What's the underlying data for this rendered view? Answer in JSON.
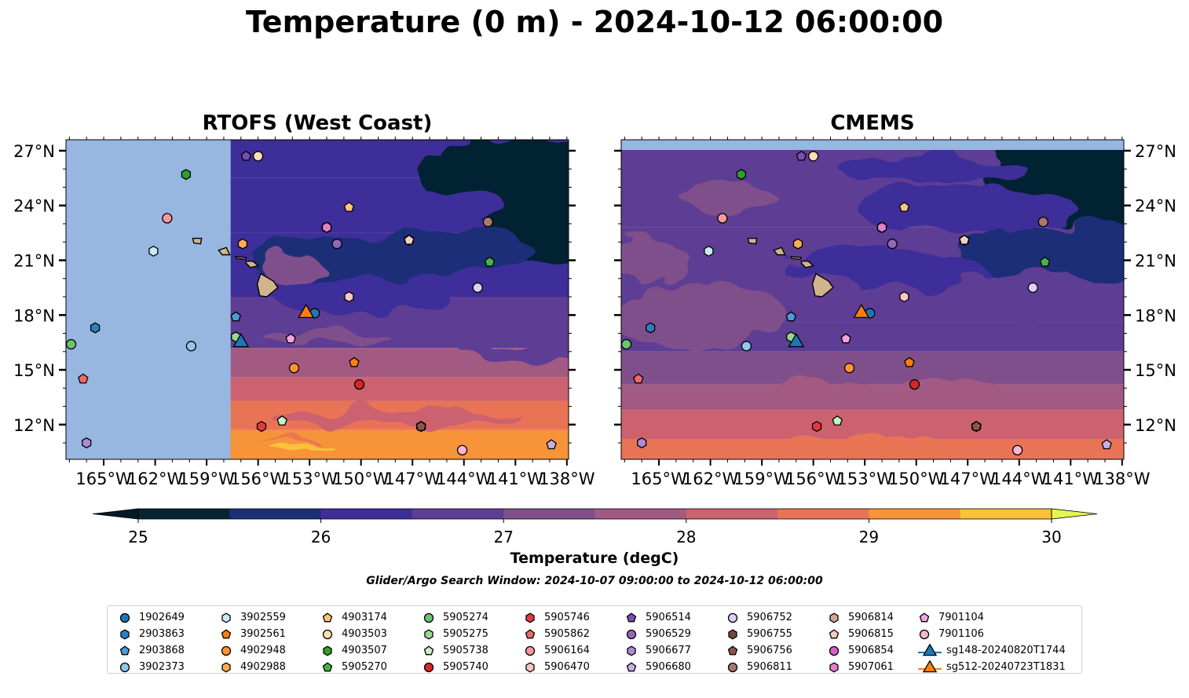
{
  "title": "Temperature (0 m) - 2024-10-12 06:00:00",
  "panels": [
    {
      "title": "RTOFS (West Coast)"
    },
    {
      "title": "CMEMS"
    }
  ],
  "map": {
    "lon_ticks": [
      "165°W",
      "162°W",
      "159°W",
      "156°W",
      "153°W",
      "150°W",
      "147°W",
      "144°W",
      "141°W",
      "138°W"
    ],
    "lon_values": [
      -165,
      -162,
      -159,
      -156,
      -153,
      -150,
      -147,
      -144,
      -141,
      -138
    ],
    "lat_ticks": [
      "27°N",
      "24°N",
      "21°N",
      "18°N",
      "15°N",
      "12°N"
    ],
    "lat_values": [
      27,
      24,
      21,
      18,
      15,
      12
    ],
    "extent": {
      "lon": [
        -167.2,
        -137.9
      ],
      "lat": [
        10.1,
        27.6
      ]
    },
    "rtofs_domain_west_lon": -157.6,
    "colors": {
      "land": "#d2b48c",
      "no_data": "#97b6e0"
    }
  },
  "colorbar": {
    "label": "Temperature (degC)",
    "ticks": [
      "25",
      "26",
      "27",
      "28",
      "29",
      "30"
    ],
    "tick_values": [
      25,
      26,
      27,
      28,
      29,
      30
    ],
    "min": 25,
    "max": 30,
    "step": 0.5,
    "colors": [
      "#062431",
      "#1b2f78",
      "#3d2e99",
      "#5e3d94",
      "#7f4f8c",
      "#a35a82",
      "#cc6270",
      "#e97455",
      "#f79338",
      "#fbc13a"
    ],
    "under_color": "#051a24",
    "over_color": "#e8f44f"
  },
  "search_window": "Glider/Argo Search Window: 2024-10-07 09:00:00 to 2024-10-12 06:00:00",
  "legend": {
    "items": [
      {
        "label": "1902649",
        "marker": "circle",
        "color": "#1f77b4"
      },
      {
        "label": "2903863",
        "marker": "hexagon",
        "color": "#2f7fc1"
      },
      {
        "label": "2903868",
        "marker": "pentagon",
        "color": "#4d9bd6"
      },
      {
        "label": "3902373",
        "marker": "circle",
        "color": "#8fc7ee"
      },
      {
        "label": "3902559",
        "marker": "hexagon",
        "color": "#c9eaf8"
      },
      {
        "label": "3902561",
        "marker": "pentagon",
        "color": "#ff7f0e"
      },
      {
        "label": "4902948",
        "marker": "circle",
        "color": "#ff9530"
      },
      {
        "label": "4902988",
        "marker": "hexagon",
        "color": "#ffab55"
      },
      {
        "label": "4903174",
        "marker": "pentagon",
        "color": "#ffc47f"
      },
      {
        "label": "4903503",
        "marker": "circle",
        "color": "#ffdcb4"
      },
      {
        "label": "4903507",
        "marker": "hexagon",
        "color": "#2ca02c"
      },
      {
        "label": "5905270",
        "marker": "pentagon",
        "color": "#45b345"
      },
      {
        "label": "5905274",
        "marker": "circle",
        "color": "#6cc46c"
      },
      {
        "label": "5905275",
        "marker": "hexagon",
        "color": "#95da8b"
      },
      {
        "label": "5905738",
        "marker": "pentagon",
        "color": "#c4f4bf"
      },
      {
        "label": "5905740",
        "marker": "circle",
        "color": "#d62728"
      },
      {
        "label": "5905746",
        "marker": "hexagon",
        "color": "#e03a3b"
      },
      {
        "label": "5905862",
        "marker": "pentagon",
        "color": "#ec6a6a"
      },
      {
        "label": "5906164",
        "marker": "circle",
        "color": "#f59a9a"
      },
      {
        "label": "5906470",
        "marker": "hexagon",
        "color": "#fbc6c6"
      },
      {
        "label": "5906514",
        "marker": "pentagon",
        "color": "#7a4fb0"
      },
      {
        "label": "5906529",
        "marker": "circle",
        "color": "#9467bd"
      },
      {
        "label": "5906677",
        "marker": "hexagon",
        "color": "#ad89d6"
      },
      {
        "label": "5906680",
        "marker": "pentagon",
        "color": "#c5b0e8"
      },
      {
        "label": "5906752",
        "marker": "circle",
        "color": "#e0cef5"
      },
      {
        "label": "5906755",
        "marker": "hexagon",
        "color": "#6f4a3f"
      },
      {
        "label": "5906756",
        "marker": "pentagon",
        "color": "#8c564b"
      },
      {
        "label": "5906811",
        "marker": "circle",
        "color": "#a9786d"
      },
      {
        "label": "5906814",
        "marker": "hexagon",
        "color": "#d2a694"
      },
      {
        "label": "5906815",
        "marker": "pentagon",
        "color": "#f4cfc0"
      },
      {
        "label": "5906854",
        "marker": "circle",
        "color": "#d462c4"
      },
      {
        "label": "5907061",
        "marker": "hexagon",
        "color": "#e07fd0"
      },
      {
        "label": "7901104",
        "marker": "pentagon",
        "color": "#f2a3e2"
      },
      {
        "label": "7901106",
        "marker": "circle",
        "color": "#f7b6d2"
      },
      {
        "label": "sg148-20240820T1744",
        "marker": "triangle",
        "color": "#1f77b4"
      },
      {
        "label": "sg512-20240723T1831",
        "marker": "triangle",
        "color": "#ff7f0e"
      }
    ]
  },
  "stations": [
    {
      "id": "1902649",
      "lon": -152.7,
      "lat": 18.1
    },
    {
      "id": "2903863",
      "lon": -165.5,
      "lat": 17.3
    },
    {
      "id": "2903868",
      "lon": -157.3,
      "lat": 17.9
    },
    {
      "id": "3902373",
      "lon": -159.9,
      "lat": 16.3
    },
    {
      "id": "3902559",
      "lon": -162.1,
      "lat": 21.5
    },
    {
      "id": "3902561",
      "lon": -150.4,
      "lat": 15.4
    },
    {
      "id": "4902948",
      "lon": -153.9,
      "lat": 15.1
    },
    {
      "id": "4902988",
      "lon": -156.9,
      "lat": 21.9
    },
    {
      "id": "4903174",
      "lon": -150.7,
      "lat": 23.9
    },
    {
      "id": "4903503",
      "lon": -156.0,
      "lat": 26.7
    },
    {
      "id": "4903507",
      "lon": -160.2,
      "lat": 25.7
    },
    {
      "id": "5905270",
      "lon": -142.5,
      "lat": 20.9
    },
    {
      "id": "5905274",
      "lon": -166.9,
      "lat": 16.4
    },
    {
      "id": "5905275",
      "lon": -157.3,
      "lat": 16.8
    },
    {
      "id": "5905738",
      "lon": -154.6,
      "lat": 12.2
    },
    {
      "id": "5905740",
      "lon": -150.1,
      "lat": 14.2
    },
    {
      "id": "5905746",
      "lon": -155.8,
      "lat": 11.9
    },
    {
      "id": "5905862",
      "lon": -166.2,
      "lat": 14.5
    },
    {
      "id": "5906164",
      "lon": -161.3,
      "lat": 23.3
    },
    {
      "id": "5906470",
      "lon": -150.7,
      "lat": 19.0
    },
    {
      "id": "5906514",
      "lon": -156.7,
      "lat": 26.7
    },
    {
      "id": "5906529",
      "lon": -151.4,
      "lat": 21.9
    },
    {
      "id": "5906677",
      "lon": -166.0,
      "lat": 11.0
    },
    {
      "id": "5906680",
      "lon": -138.9,
      "lat": 10.9
    },
    {
      "id": "5906752",
      "lon": -143.2,
      "lat": 19.5
    },
    {
      "id": "5906755",
      "lon": -146.5,
      "lat": 11.9
    },
    {
      "id": "5906756",
      "lon": -146.5,
      "lat": 11.9
    },
    {
      "id": "5906811",
      "lon": -142.6,
      "lat": 23.1
    },
    {
      "id": "5906814",
      "lon": -147.2,
      "lat": 22.1
    },
    {
      "id": "5906815",
      "lon": -147.2,
      "lat": 22.1
    },
    {
      "id": "5906854",
      "lon": -152.0,
      "lat": 22.8
    },
    {
      "id": "5907061",
      "lon": -152.0,
      "lat": 22.8
    },
    {
      "id": "7901104",
      "lon": -154.1,
      "lat": 16.7
    },
    {
      "id": "7901106",
      "lon": -144.1,
      "lat": 10.6
    },
    {
      "id": "sg148-20240820T1744",
      "lon": -157.0,
      "lat": 16.5
    },
    {
      "id": "sg512-20240723T1831",
      "lon": -153.2,
      "lat": 18.1
    }
  ]
}
